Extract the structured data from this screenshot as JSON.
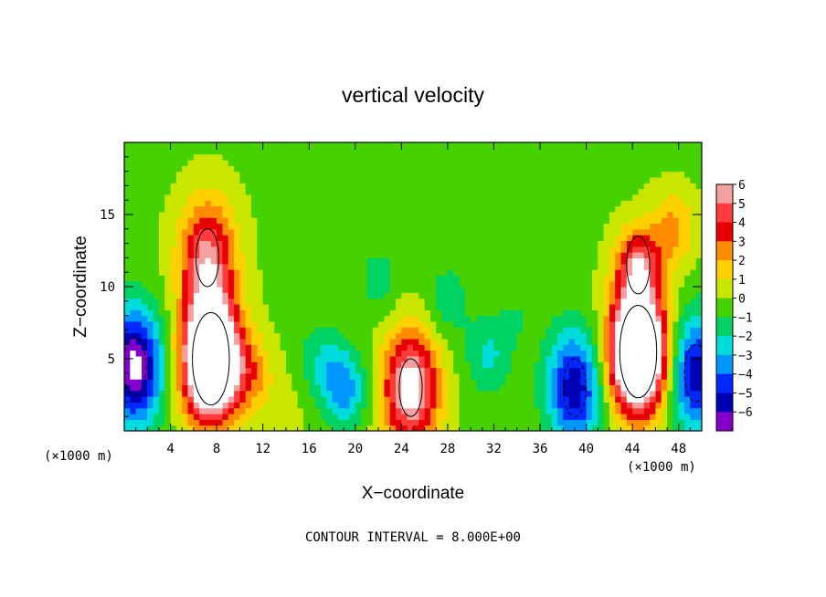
{
  "chart_data": {
    "type": "heatmap",
    "title": "vertical velocity",
    "xlabel": "X−coordinate",
    "ylabel": "Z−coordinate",
    "x_unit_left": "(×1000 m)",
    "x_unit_right": "(×1000 m)",
    "footer": "CONTOUR INTERVAL = 8.000E+00",
    "xlim": [
      0,
      50
    ],
    "ylim": [
      0,
      20
    ],
    "x_ticks": [
      4,
      8,
      12,
      16,
      20,
      24,
      28,
      32,
      36,
      40,
      44,
      48
    ],
    "x_tick_labels": [
      "4",
      "8",
      "12",
      "16",
      "20",
      "24",
      "28",
      "32",
      "36",
      "40",
      "44",
      "48"
    ],
    "y_ticks": [
      5,
      10,
      15
    ],
    "y_tick_labels": [
      "5",
      "10",
      "15"
    ],
    "colorbar": {
      "min": -6,
      "max": 6,
      "tick_labels": [
        "6",
        "5",
        "4",
        "3",
        "2",
        "1",
        "0",
        "−1",
        "−2",
        "−3",
        "−4",
        "−5",
        "−6"
      ],
      "colors": [
        "#f4a0a0",
        "#ff3c3c",
        "#e80000",
        "#ff8c00",
        "#ffd000",
        "#c8e600",
        "#46d200",
        "#00d264",
        "#00dcdc",
        "#0096ff",
        "#0028ff",
        "#0000b4",
        "#8200c8"
      ]
    },
    "features": [
      {
        "x": 7.5,
        "z": 5.0,
        "w": 260
      },
      {
        "x": 44.5,
        "z": 5.5,
        "w": 270
      },
      {
        "x": 24.8,
        "z": 3.0,
        "w": 140
      },
      {
        "x": 7.2,
        "z": 12.0,
        "w": 110
      },
      {
        "x": 44.5,
        "z": 11.5,
        "w": 100
      },
      {
        "x": 47.5,
        "z": 14.0,
        "w": 50
      },
      {
        "x": 0.9,
        "z": 4.5,
        "w": -140
      },
      {
        "x": 49.5,
        "z": 4.0,
        "w": -110
      },
      {
        "x": 31.5,
        "z": 5.2,
        "w": -40
      },
      {
        "x": 39.0,
        "z": 3.0,
        "w": -110
      },
      {
        "x": 19.0,
        "z": 3.0,
        "w": -70
      },
      {
        "x": 22.0,
        "z": 10.5,
        "w": -25
      },
      {
        "x": 28.0,
        "z": 9.0,
        "w": -30
      },
      {
        "x": 17.0,
        "z": 5.0,
        "w": -30
      },
      {
        "x": 34.0,
        "z": 8.0,
        "w": -15
      },
      {
        "x": 11.0,
        "z": 4.0,
        "w": 45
      },
      {
        "x": 14.0,
        "z": 1.5,
        "w": 12
      }
    ]
  }
}
